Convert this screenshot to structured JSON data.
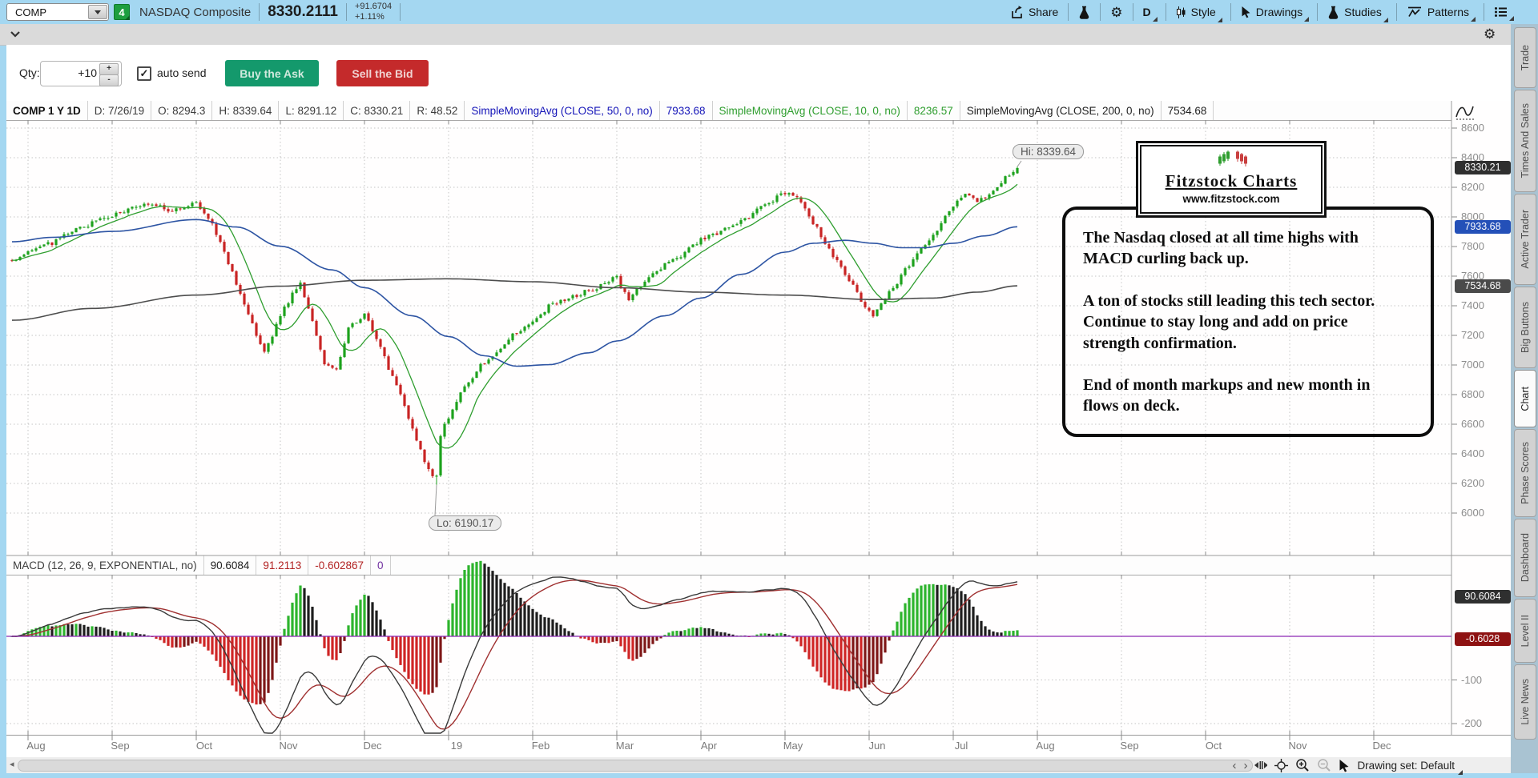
{
  "toolbar": {
    "symbol": "COMP",
    "link_badge": "4",
    "symbol_name": "NASDAQ Composite",
    "last_price": "8330.2111",
    "change": "+91.6704",
    "change_pct": "+1.11%",
    "share_label": "Share",
    "interval_label": "D",
    "style_label": "Style",
    "drawings_label": "Drawings",
    "studies_label": "Studies",
    "patterns_label": "Patterns"
  },
  "order_bar": {
    "qty_label": "Qty:",
    "qty_value": "+10",
    "step_up": "+",
    "step_down": "-",
    "auto_send_label": "auto send",
    "auto_send_checked": "✓",
    "buy_label": "Buy the Ask",
    "sell_label": "Sell the Bid"
  },
  "chart_header": {
    "cells": [
      {
        "text": "COMP 1 Y 1D",
        "color": "bold"
      },
      {
        "text": "D: 7/26/19",
        "color": ""
      },
      {
        "text": "O: 8294.3",
        "color": ""
      },
      {
        "text": "H: 8339.64",
        "color": ""
      },
      {
        "text": "L: 8291.12",
        "color": ""
      },
      {
        "text": "C: 8330.21",
        "color": ""
      },
      {
        "text": "R: 48.52",
        "color": ""
      },
      {
        "text": "SimpleMovingAvg (CLOSE, 50, 0, no)",
        "color": "blue"
      },
      {
        "text": "7933.68",
        "color": "blue"
      },
      {
        "text": "SimpleMovingAvg (CLOSE, 10, 0, no)",
        "color": "green"
      },
      {
        "text": "8236.57",
        "color": "green"
      },
      {
        "text": "SimpleMovingAvg (CLOSE, 200, 0, no)",
        "color": "dark"
      },
      {
        "text": "7534.68",
        "color": "dark"
      }
    ]
  },
  "macd_header": {
    "cells": [
      {
        "text": "MACD (12, 26, 9, EXPONENTIAL, no)",
        "color": ""
      },
      {
        "text": "90.6084",
        "color": "dark"
      },
      {
        "text": "91.2113",
        "color": "red"
      },
      {
        "text": "-0.602867",
        "color": "red"
      },
      {
        "text": "0",
        "color": "purple"
      }
    ]
  },
  "price_axis": {
    "ticks": [
      8600,
      8400,
      8200,
      8000,
      7800,
      7600,
      7400,
      7200,
      7000,
      6800,
      6600,
      6400,
      6200,
      6000
    ],
    "badges": [
      {
        "text": "8330.21",
        "value": 8330.21,
        "bg": "#2f2f2f"
      },
      {
        "text": "7933.68",
        "value": 7933.68,
        "bg": "#2450b8"
      },
      {
        "text": "7534.68",
        "value": 7534.68,
        "bg": "#4a4a4a"
      }
    ]
  },
  "macd_axis": {
    "ticks": [
      -100,
      -200
    ],
    "badges": [
      {
        "text": "90.6084",
        "y_value": 90.6,
        "bg": "#2f2f2f"
      },
      {
        "text": "-0.6028",
        "y_value": -7,
        "bg": "#8e1212"
      }
    ]
  },
  "x_axis": {
    "labels": [
      "Aug",
      "Sep",
      "Oct",
      "Nov",
      "Dec",
      "19",
      "Feb",
      "Mar",
      "Apr",
      "May",
      "Jun",
      "Jul",
      "Aug",
      "Sep",
      "Oct",
      "Nov",
      "Dec"
    ]
  },
  "callouts": {
    "hi": "Hi: 8339.64",
    "lo": "Lo: 6190.17"
  },
  "logo": {
    "title": "Fitzstock Charts",
    "url": "www.fitzstock.com"
  },
  "note": {
    "paragraphs": [
      "The Nasdaq closed at all time highs with MACD curling back up.",
      "A ton of stocks still leading this tech sector.   Continue to stay long and add on price strength confirmation.",
      "End of month markups and new month in flows on deck."
    ]
  },
  "sidebar": {
    "tabs": [
      {
        "label": "Trade",
        "active": false
      },
      {
        "label": "Times And Sales",
        "active": false
      },
      {
        "label": "Active Trader",
        "active": false
      },
      {
        "label": "Big Buttons",
        "active": false
      },
      {
        "label": "Chart",
        "active": true
      },
      {
        "label": "Phase Scores",
        "active": false
      },
      {
        "label": "Dashboard",
        "active": false
      },
      {
        "label": "Level II",
        "active": false
      },
      {
        "label": "Live News",
        "active": false
      }
    ]
  },
  "bottom_bar": {
    "drawing_set_label": "Drawing set: Default"
  },
  "chart_data": {
    "type": "candlestick",
    "title": "COMP 1 Y 1D - NASDAQ Composite daily, 1 year",
    "price_range": [
      6000,
      8600
    ],
    "price_step": 200,
    "days_per_month": 21,
    "total_days": 252,
    "x_months": [
      "Aug",
      "Sep",
      "Oct",
      "Nov",
      "Dec",
      "19",
      "Feb",
      "Mar",
      "Apr",
      "May",
      "Jun",
      "Jul",
      "Aug",
      "Sep",
      "Oct",
      "Nov",
      "Dec"
    ],
    "ohlc_last": {
      "date": "7/26/19",
      "open": 8294.3,
      "high": 8339.64,
      "low": 8291.12,
      "close": 8330.21,
      "range": 48.52
    },
    "high_52wk": 8339.64,
    "low_52wk": 6190.17,
    "low_day": 106,
    "close_anchors": [
      [
        0,
        7710
      ],
      [
        4,
        7762
      ],
      [
        10,
        7825
      ],
      [
        14,
        7885
      ],
      [
        20,
        7962
      ],
      [
        25,
        8012
      ],
      [
        30,
        8062
      ],
      [
        35,
        8092
      ],
      [
        40,
        8042
      ],
      [
        46,
        8108
      ],
      [
        50,
        7952
      ],
      [
        54,
        7682
      ],
      [
        58,
        7422
      ],
      [
        61,
        7205
      ],
      [
        63,
        7082
      ],
      [
        67,
        7332
      ],
      [
        70,
        7482
      ],
      [
        72,
        7552
      ],
      [
        75,
        7282
      ],
      [
        78,
        7022
      ],
      [
        81,
        6972
      ],
      [
        84,
        7242
      ],
      [
        88,
        7332
      ],
      [
        91,
        7182
      ],
      [
        94,
        6982
      ],
      [
        97,
        6792
      ],
      [
        100,
        6562
      ],
      [
        103,
        6352
      ],
      [
        106,
        6212
      ],
      [
        107,
        6532
      ],
      [
        109,
        6642
      ],
      [
        113,
        6862
      ],
      [
        117,
        6992
      ],
      [
        121,
        7092
      ],
      [
        126,
        7222
      ],
      [
        130,
        7292
      ],
      [
        134,
        7392
      ],
      [
        139,
        7452
      ],
      [
        144,
        7502
      ],
      [
        151,
        7592
      ],
      [
        154,
        7442
      ],
      [
        158,
        7562
      ],
      [
        163,
        7672
      ],
      [
        167,
        7742
      ],
      [
        172,
        7852
      ],
      [
        177,
        7902
      ],
      [
        182,
        7962
      ],
      [
        187,
        8072
      ],
      [
        193,
        8162
      ],
      [
        196,
        8132
      ],
      [
        200,
        7962
      ],
      [
        204,
        7782
      ],
      [
        208,
        7612
      ],
      [
        212,
        7442
      ],
      [
        215,
        7322
      ],
      [
        218,
        7462
      ],
      [
        221,
        7562
      ],
      [
        225,
        7722
      ],
      [
        228,
        7812
      ],
      [
        231,
        7902
      ],
      [
        235,
        8082
      ],
      [
        238,
        8152
      ],
      [
        241,
        8092
      ],
      [
        244,
        8152
      ],
      [
        247,
        8242
      ],
      [
        249,
        8282
      ],
      [
        251,
        8330.21
      ]
    ],
    "sma50_anchors": [
      [
        0,
        7832
      ],
      [
        10,
        7862
      ],
      [
        25,
        7902
      ],
      [
        46,
        7982
      ],
      [
        56,
        7932
      ],
      [
        67,
        7802
      ],
      [
        80,
        7642
      ],
      [
        88,
        7522
      ],
      [
        100,
        7332
      ],
      [
        109,
        7192
      ],
      [
        118,
        7062
      ],
      [
        126,
        6992
      ],
      [
        134,
        7002
      ],
      [
        144,
        7082
      ],
      [
        151,
        7162
      ],
      [
        163,
        7332
      ],
      [
        172,
        7452
      ],
      [
        182,
        7612
      ],
      [
        193,
        7762
      ],
      [
        200,
        7822
      ],
      [
        208,
        7842
      ],
      [
        215,
        7822
      ],
      [
        222,
        7792
      ],
      [
        228,
        7792
      ],
      [
        235,
        7822
      ],
      [
        243,
        7872
      ],
      [
        251,
        7933.68
      ]
    ],
    "sma200_anchors": [
      [
        0,
        7302
      ],
      [
        20,
        7382
      ],
      [
        46,
        7472
      ],
      [
        67,
        7532
      ],
      [
        88,
        7572
      ],
      [
        109,
        7582
      ],
      [
        130,
        7562
      ],
      [
        151,
        7522
      ],
      [
        172,
        7492
      ],
      [
        193,
        7472
      ],
      [
        215,
        7442
      ],
      [
        230,
        7452
      ],
      [
        241,
        7492
      ],
      [
        251,
        7534.68
      ]
    ],
    "sma10_last": 8236.57,
    "macd": {
      "fast": 12,
      "slow": 26,
      "signal": 9,
      "type": "EXPONENTIAL",
      "last_macd": 90.6084,
      "last_signal": 91.2113,
      "last_hist": -0.602867,
      "axis_ticks": [
        -100,
        -200
      ]
    },
    "colors": {
      "up": "#1da21d",
      "down": "#c92424",
      "sma10": "#2f9e2f",
      "sma50": "#2d54a3",
      "sma200": "#4d4d4d",
      "macd_line": "#3a3a3a",
      "signal_line": "#a03030",
      "zero_line": "#8c28b4",
      "hist_pos_rise": "#2db42d",
      "hist_pos_fall": "#1e1e1e",
      "hist_neg_fall": "#cf2525",
      "hist_neg_rise": "#7e1717",
      "grid": "#c4c4c4"
    }
  }
}
